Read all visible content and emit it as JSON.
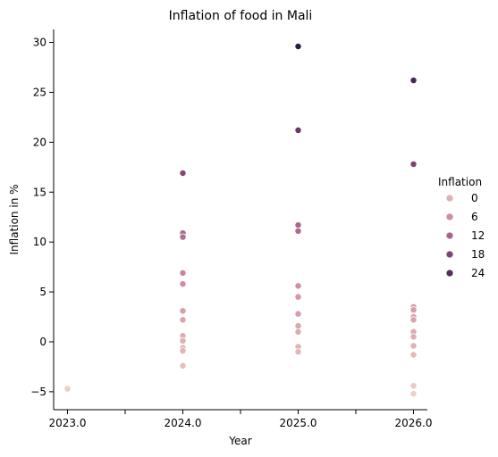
{
  "chart_data": {
    "type": "scatter",
    "title": "Inflation of food in Mali",
    "xlabel": "Year",
    "ylabel": "Inflation in %",
    "xlim": [
      2022.88,
      2026.12
    ],
    "ylim": [
      -6.8,
      31.3
    ],
    "x_ticks": [
      2023.0,
      2023.5,
      2024.0,
      2024.5,
      2025.0,
      2025.5,
      2026.0
    ],
    "x_tick_labels": [
      "2023.0",
      "",
      "2024.0",
      "",
      "2025.0",
      "",
      "2026.0"
    ],
    "y_ticks": [
      -5,
      0,
      5,
      10,
      15,
      20,
      25,
      30
    ],
    "y_tick_labels": [
      "−5",
      "0",
      "5",
      "10",
      "15",
      "20",
      "25",
      "30"
    ],
    "hue": {
      "name": "Inflation",
      "min": -5.2,
      "max": 29.6,
      "color_low": "#ecd0c6",
      "color_high": "#2d1e3e"
    },
    "legend": {
      "title": "Inflation",
      "position": "right",
      "entries": [
        {
          "label": "0",
          "value": 0
        },
        {
          "label": "6",
          "value": 6
        },
        {
          "label": "12",
          "value": 12
        },
        {
          "label": "18",
          "value": 18
        },
        {
          "label": "24",
          "value": 24
        }
      ]
    },
    "points": [
      {
        "x": 2023.0,
        "y": -4.7
      },
      {
        "x": 2024.0,
        "y": 16.9
      },
      {
        "x": 2024.0,
        "y": 10.9
      },
      {
        "x": 2024.0,
        "y": 10.5
      },
      {
        "x": 2024.0,
        "y": 6.9
      },
      {
        "x": 2024.0,
        "y": 5.8
      },
      {
        "x": 2024.0,
        "y": 3.1
      },
      {
        "x": 2024.0,
        "y": 2.2
      },
      {
        "x": 2024.0,
        "y": 0.6
      },
      {
        "x": 2024.0,
        "y": 0.1
      },
      {
        "x": 2024.0,
        "y": -0.6
      },
      {
        "x": 2024.0,
        "y": -0.9
      },
      {
        "x": 2024.0,
        "y": -2.4
      },
      {
        "x": 2025.0,
        "y": 29.6
      },
      {
        "x": 2025.0,
        "y": 21.2
      },
      {
        "x": 2025.0,
        "y": 11.7
      },
      {
        "x": 2025.0,
        "y": 11.1
      },
      {
        "x": 2025.0,
        "y": 5.6
      },
      {
        "x": 2025.0,
        "y": 4.5
      },
      {
        "x": 2025.0,
        "y": 2.8
      },
      {
        "x": 2025.0,
        "y": 1.6
      },
      {
        "x": 2025.0,
        "y": 1.0
      },
      {
        "x": 2025.0,
        "y": -0.5
      },
      {
        "x": 2025.0,
        "y": -1.0
      },
      {
        "x": 2026.0,
        "y": 26.2
      },
      {
        "x": 2026.0,
        "y": 17.8
      },
      {
        "x": 2026.0,
        "y": 3.5
      },
      {
        "x": 2026.0,
        "y": 3.2
      },
      {
        "x": 2026.0,
        "y": 2.5
      },
      {
        "x": 2026.0,
        "y": 2.2
      },
      {
        "x": 2026.0,
        "y": 1.0
      },
      {
        "x": 2026.0,
        "y": 0.5
      },
      {
        "x": 2026.0,
        "y": -0.4
      },
      {
        "x": 2026.0,
        "y": -1.3
      },
      {
        "x": 2026.0,
        "y": -4.4
      },
      {
        "x": 2026.0,
        "y": -5.2
      }
    ]
  }
}
